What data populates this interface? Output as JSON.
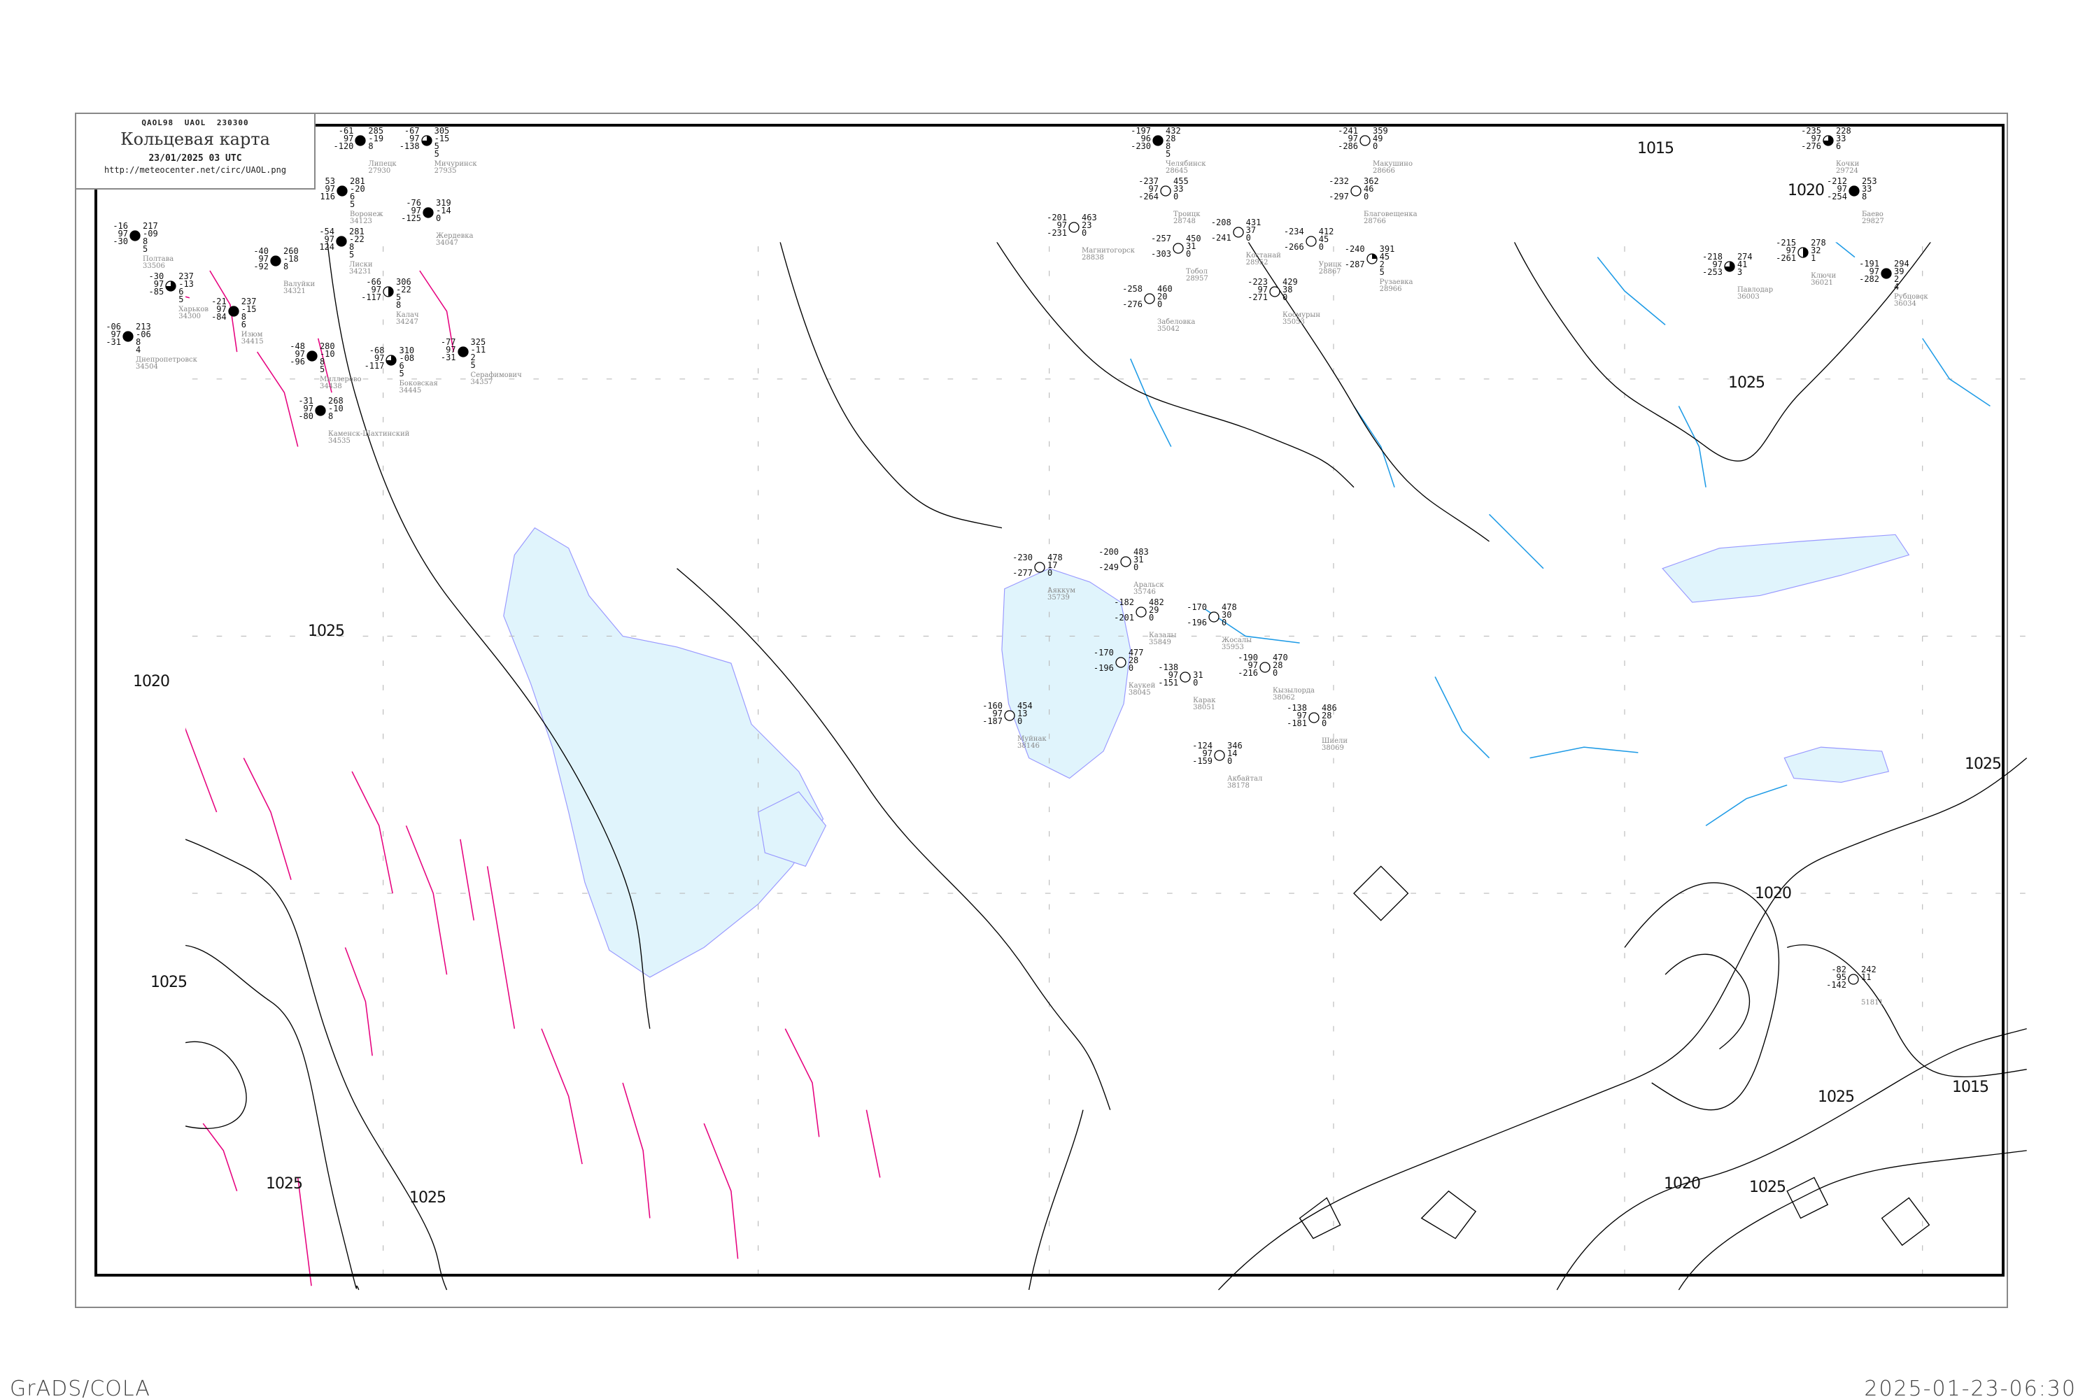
{
  "header": {
    "code_line": "QAOL98  UAOL  230300",
    "title": "Кольцевая карта",
    "date": "23/01/2025 03 UTC",
    "url": "http://meteocenter.net/circ/UAOL.png"
  },
  "footer": {
    "software": "GrADS/COLA",
    "timestamp": "2025-01-23-06:30"
  },
  "colors": {
    "isobar": "#000000",
    "water": "#e0f4fc",
    "coast": "#9999ff",
    "river": "#1e9be6",
    "front_zone": "#e6007e",
    "station_label": "#888888"
  },
  "isobar_labels": [
    "1015",
    "1020",
    "1025",
    "1020",
    "1025",
    "1025",
    "1025",
    "1025",
    "1020",
    "1025",
    "1015",
    "1020",
    "1025",
    "1025"
  ],
  "stations": [
    {
      "name": "Челябинск",
      "index": "28645",
      "left": [
        "-197",
        "96",
        "-230"
      ],
      "right": [
        "432",
        "28",
        "8",
        "5"
      ],
      "cloud": "full"
    },
    {
      "name": "Троицк",
      "index": "28748",
      "left": [
        "-237",
        "97",
        "-264"
      ],
      "right": [
        "455",
        "33",
        "0"
      ],
      "cloud": "clear"
    },
    {
      "name": "Магнитогорск",
      "index": "28838",
      "left": [
        "-201",
        "97",
        "-231"
      ],
      "right": [
        "463",
        "23",
        "0"
      ],
      "cloud": "clear"
    },
    {
      "name": "Костанай",
      "index": "28952",
      "left": [
        "-208",
        "",
        "-241"
      ],
      "right": [
        "431",
        "37",
        "0"
      ],
      "cloud": "clear"
    },
    {
      "name": "Тобол",
      "index": "28957",
      "left": [
        "-257",
        "",
        "-303"
      ],
      "right": [
        "450",
        "31",
        "0"
      ],
      "cloud": "clear"
    },
    {
      "name": "Забеловка",
      "index": "35042",
      "left": [
        "-258",
        "",
        "-276"
      ],
      "right": [
        "460",
        "20",
        "0"
      ],
      "cloud": "clear"
    },
    {
      "name": "Космурын",
      "index": "35053",
      "left": [
        "-223",
        "97",
        "-271"
      ],
      "right": [
        "429",
        "38",
        "0"
      ],
      "cloud": "clear"
    },
    {
      "name": "Урицк",
      "index": "28867",
      "left": [
        "-234",
        "",
        "-266"
      ],
      "right": [
        "412",
        "45",
        "0"
      ],
      "cloud": "clear"
    },
    {
      "name": "Благовещенка",
      "index": "28766",
      "left": [
        "-232",
        "",
        "-297"
      ],
      "right": [
        "362",
        "46",
        "0"
      ],
      "cloud": "clear"
    },
    {
      "name": "Рузаевка",
      "index": "28966",
      "left": [
        "-240",
        "",
        "-287"
      ],
      "right": [
        "391",
        "45",
        "2",
        "5"
      ],
      "cloud": "quarter"
    },
    {
      "name": "Макушино",
      "index": "28666",
      "left": [
        "-241",
        "97",
        "-286"
      ],
      "right": [
        "359",
        "49",
        "0"
      ],
      "cloud": "clear"
    },
    {
      "name": "Кочки",
      "index": "29724",
      "left": [
        "-235",
        "97",
        "-276"
      ],
      "right": [
        "228",
        "33",
        "6"
      ],
      "cloud": "three-quarter"
    },
    {
      "name": "Баево",
      "index": "29827",
      "left": [
        "-212",
        "97",
        "-254"
      ],
      "right": [
        "253",
        "33",
        "8"
      ],
      "cloud": "full"
    },
    {
      "name": "Ключи",
      "index": "36021",
      "left": [
        "-215",
        "97",
        "-261"
      ],
      "right": [
        "278",
        "32",
        "1"
      ],
      "cloud": "half"
    },
    {
      "name": "Павлодар",
      "index": "36003",
      "left": [
        "-218",
        "97",
        "-253"
      ],
      "right": [
        "274",
        "41",
        "3"
      ],
      "cloud": "three-quarter"
    },
    {
      "name": "Рубцовск",
      "index": "36034",
      "left": [
        "-191",
        "97",
        "-282"
      ],
      "right": [
        "294",
        "39",
        "2",
        "4"
      ],
      "cloud": "full"
    },
    {
      "name": "Аяккум",
      "index": "35739",
      "left": [
        "-230",
        "",
        "-277"
      ],
      "right": [
        "478",
        "17",
        "0"
      ],
      "cloud": "clear"
    },
    {
      "name": "Аральск",
      "index": "35746",
      "left": [
        "-200",
        "",
        "-249"
      ],
      "right": [
        "483",
        "31",
        "0"
      ],
      "cloud": "clear"
    },
    {
      "name": "Казалы",
      "index": "35849",
      "left": [
        "-182",
        "",
        "-201"
      ],
      "right": [
        "482",
        "29",
        "0"
      ],
      "cloud": "clear"
    },
    {
      "name": "Каукей",
      "index": "38045",
      "left": [
        "-170",
        "",
        "-196"
      ],
      "right": [
        "477",
        "28",
        "0"
      ],
      "cloud": "clear"
    },
    {
      "name": "Карак",
      "index": "38051",
      "left": [
        "-138",
        "97",
        "-151"
      ],
      "right": [
        "",
        "31",
        "0"
      ],
      "cloud": "clear"
    },
    {
      "name": "Жосалы",
      "index": "35953",
      "left": [
        "-170",
        "",
        "-196"
      ],
      "right": [
        "478",
        "30",
        "0"
      ],
      "cloud": "clear"
    },
    {
      "name": "Кызылорда",
      "index": "38062",
      "left": [
        "-190",
        "97",
        "-216"
      ],
      "right": [
        "470",
        "28",
        "0"
      ],
      "cloud": "clear"
    },
    {
      "name": "Шиели",
      "index": "38069",
      "left": [
        "-138",
        "97",
        "-181"
      ],
      "right": [
        "486",
        "28",
        "0"
      ],
      "cloud": "clear"
    },
    {
      "name": "Акбайтал",
      "index": "38178",
      "left": [
        "-124",
        "97",
        "-159"
      ],
      "right": [
        "346",
        "14",
        "0"
      ],
      "cloud": "clear"
    },
    {
      "name": "Муйнак",
      "index": "38146",
      "left": [
        "-160",
        "97",
        "-187"
      ],
      "right": [
        "454",
        "13",
        "0"
      ],
      "cloud": "clear"
    },
    {
      "name": "Полтава",
      "index": "33506",
      "left": [
        "-16",
        "97",
        "-30"
      ],
      "right": [
        "217",
        "-09",
        "8",
        "5"
      ],
      "cloud": "full"
    },
    {
      "name": "Днепропетровск",
      "index": "34504",
      "left": [
        "-06",
        "97",
        "-31"
      ],
      "right": [
        "213",
        "-06",
        "8",
        "4"
      ],
      "cloud": "full"
    },
    {
      "name": "Харьков",
      "index": "34300",
      "left": [
        "-30",
        "97",
        "-85"
      ],
      "right": [
        "237",
        "-13",
        "6",
        "5"
      ],
      "cloud": "three-quarter"
    },
    {
      "name": "Изюм",
      "index": "34415",
      "left": [
        "-21",
        "97",
        "-84"
      ],
      "right": [
        "237",
        "-15",
        "8",
        "6"
      ],
      "cloud": "full"
    },
    {
      "name": "Валуйки",
      "index": "34321",
      "left": [
        "-40",
        "97",
        "-92"
      ],
      "right": [
        "260",
        "-18",
        "8"
      ],
      "cloud": "full"
    },
    {
      "name": "Воронеж",
      "index": "34123",
      "left": [
        "53",
        "97",
        "116"
      ],
      "right": [
        "281",
        "-20",
        "6",
        "5"
      ],
      "cloud": "full"
    },
    {
      "name": "Лиски",
      "index": "34231",
      "left": [
        "-54",
        "97",
        "124"
      ],
      "right": [
        "281",
        "-22",
        "8",
        "5"
      ],
      "cloud": "full"
    },
    {
      "name": "Липецк",
      "index": "27930",
      "left": [
        "-61",
        "97",
        "-120"
      ],
      "right": [
        "285",
        "-19",
        "8"
      ],
      "cloud": "full"
    },
    {
      "name": "Мичуринск",
      "index": "27935",
      "left": [
        "-67",
        "97",
        "-138"
      ],
      "right": [
        "305",
        "-15",
        "5",
        "5"
      ],
      "cloud": "three-quarter"
    },
    {
      "name": "Калач",
      "index": "34247",
      "left": [
        "-66",
        "97",
        "-117"
      ],
      "right": [
        "306",
        "-22",
        "5",
        "8"
      ],
      "cloud": "half"
    },
    {
      "name": "Жердевка",
      "index": "34047",
      "left": [
        "-76",
        "97",
        "-125"
      ],
      "right": [
        "319",
        "-14",
        "0"
      ],
      "cloud": "full"
    },
    {
      "name": "Миллерово",
      "index": "34438",
      "left": [
        "-48",
        "97",
        "-96"
      ],
      "right": [
        "280",
        "-10",
        "8",
        "5"
      ],
      "cloud": "full"
    },
    {
      "name": "Боковская",
      "index": "34445",
      "left": [
        "-68",
        "97",
        "-117"
      ],
      "right": [
        "310",
        "-08",
        "6",
        "5"
      ],
      "cloud": "three-quarter"
    },
    {
      "name": "Серафимович",
      "index": "34357",
      "left": [
        "-77",
        "97",
        "-31"
      ],
      "right": [
        "325",
        "-11",
        "2",
        "5"
      ],
      "cloud": "full"
    },
    {
      "name": "Каменск-Шахтинский",
      "index": "34535",
      "left": [
        "-31",
        "97",
        "-80"
      ],
      "right": [
        "268",
        "-10",
        "8"
      ],
      "cloud": "full"
    },
    {
      "name": "",
      "index": "51811",
      "left": [
        "-82",
        "95",
        "-142"
      ],
      "right": [
        "242",
        "11"
      ],
      "cloud": "clear"
    }
  ]
}
